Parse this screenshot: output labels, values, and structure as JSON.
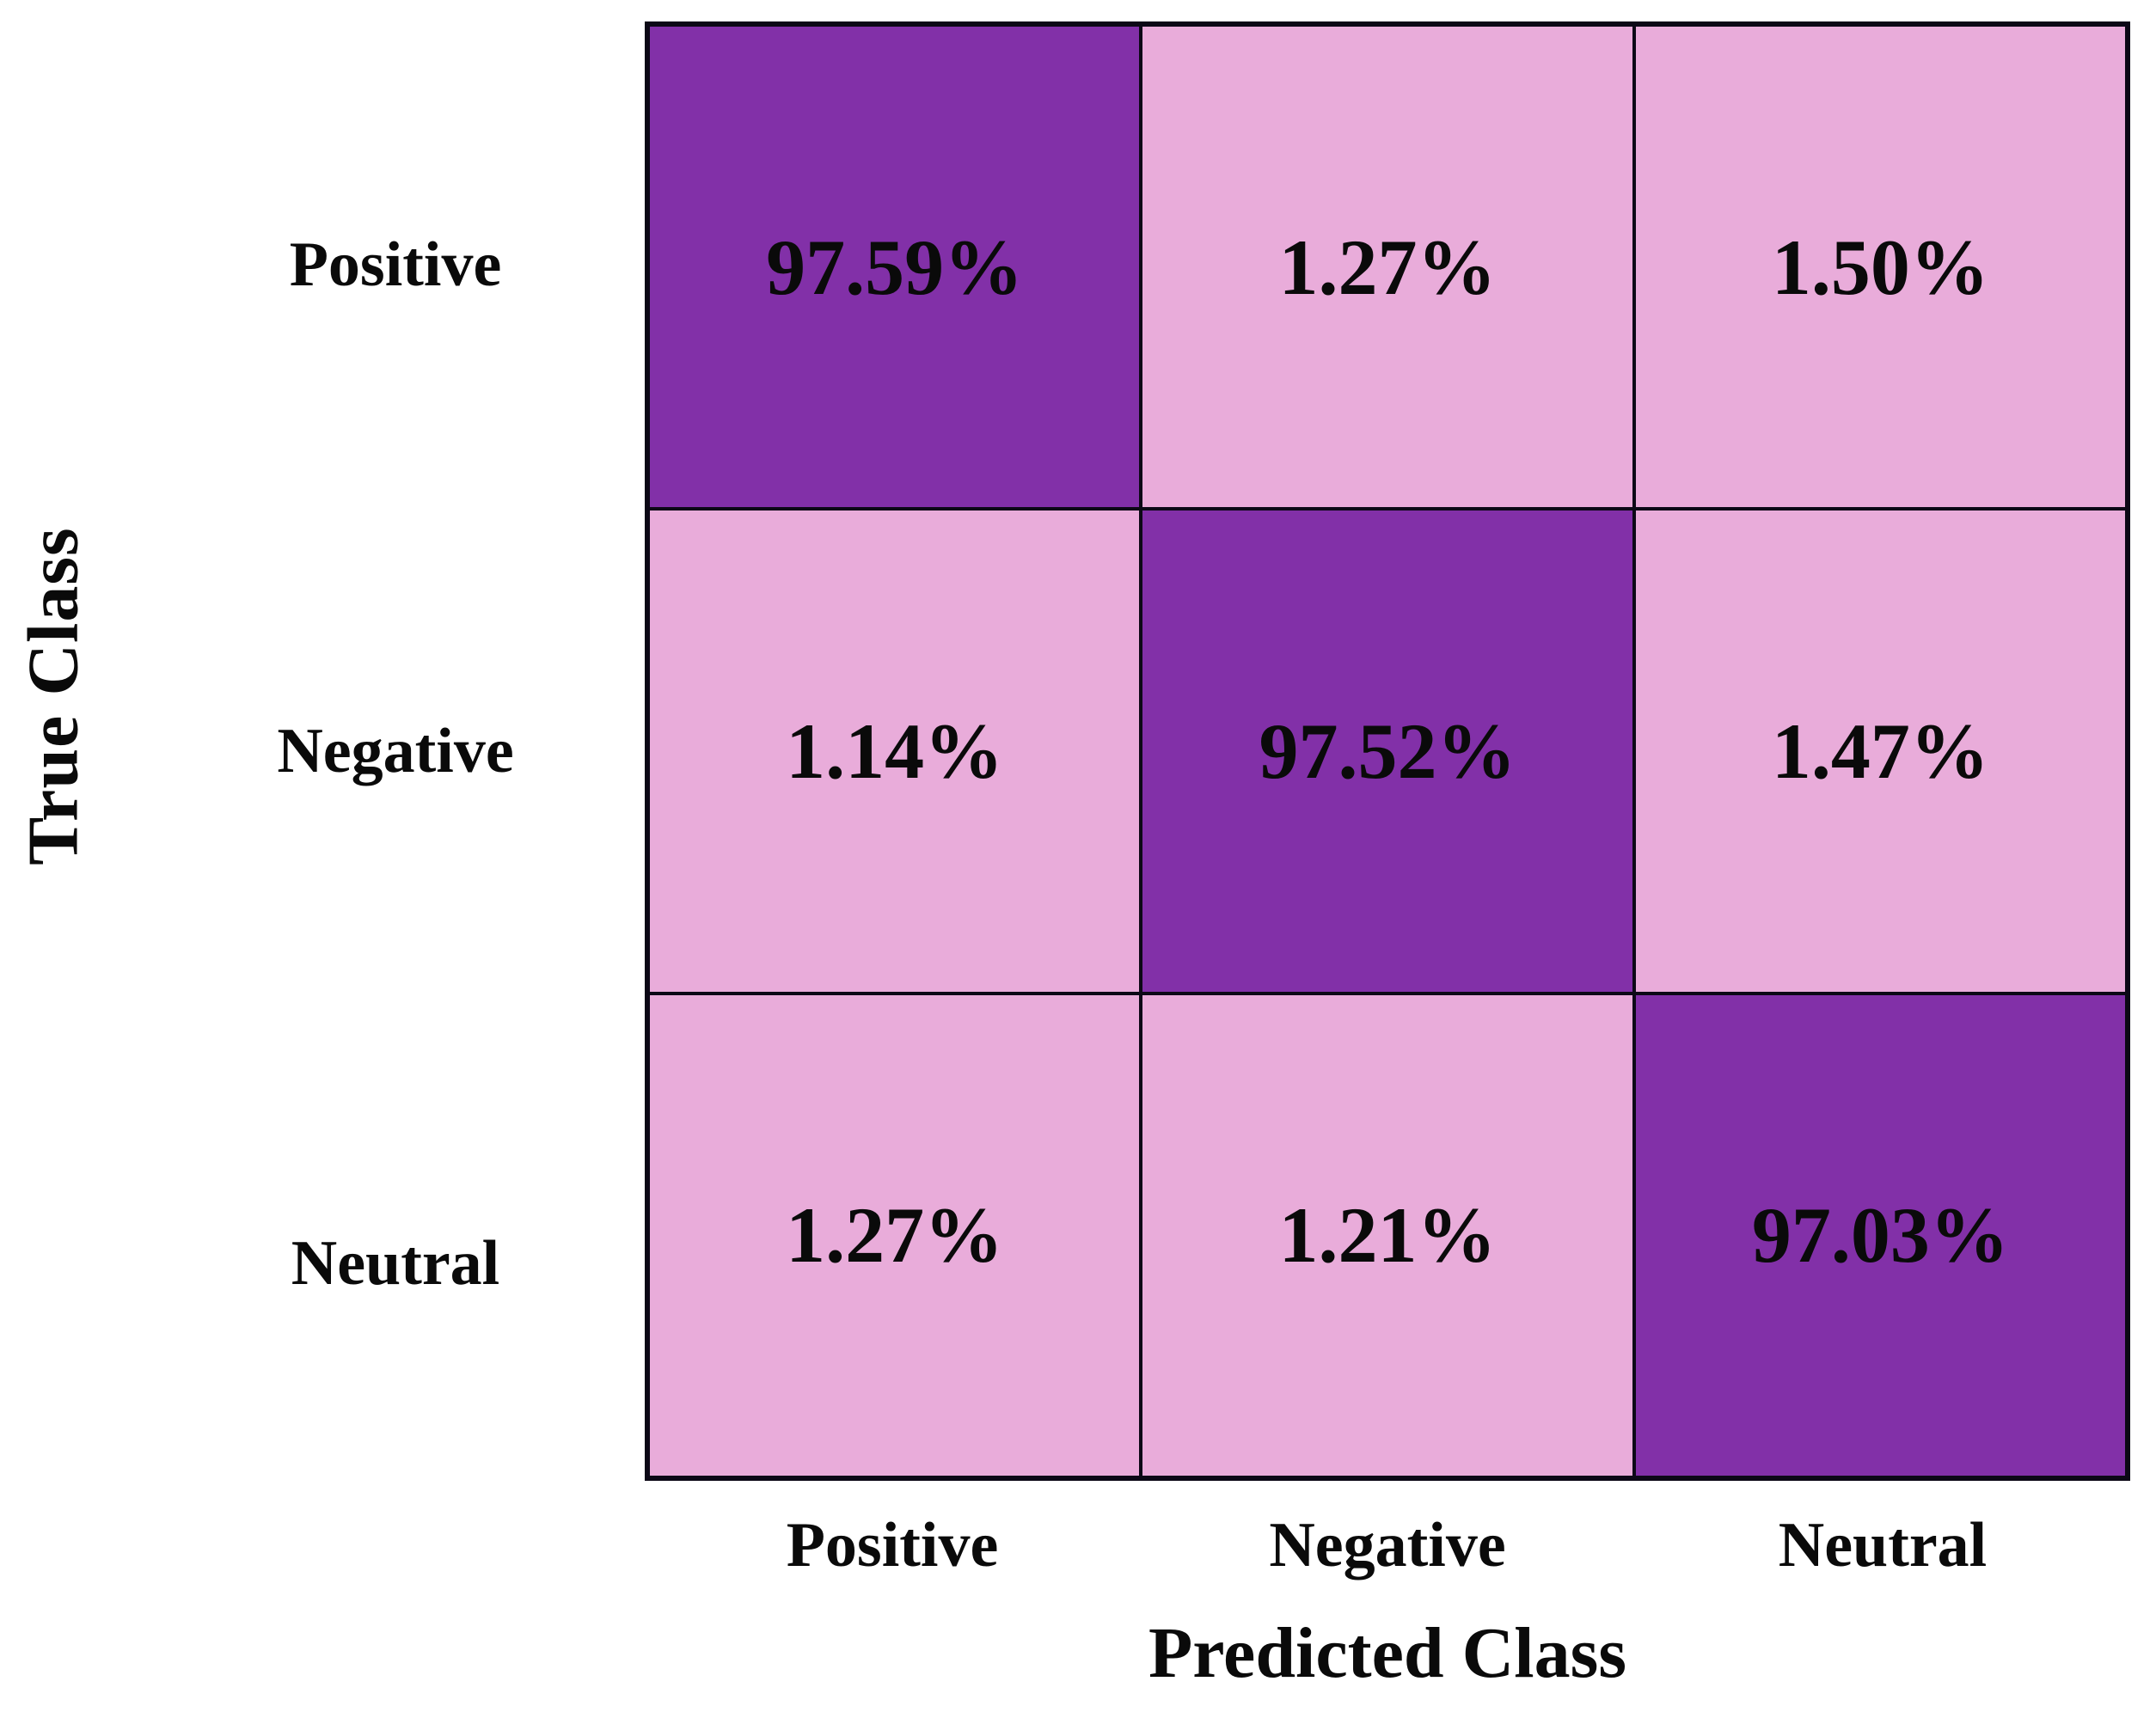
{
  "chart_data": {
    "type": "heatmap",
    "subtype": "confusion-matrix",
    "title": "",
    "xlabel": "Predicted Class",
    "ylabel": "True Class",
    "x_categories": [
      "Positive",
      "Negative",
      "Neutral"
    ],
    "y_categories": [
      "Positive",
      "Negative",
      "Neutral"
    ],
    "values_percent": [
      [
        97.59,
        1.27,
        1.5
      ],
      [
        1.14,
        97.52,
        1.47
      ],
      [
        1.27,
        1.21,
        97.03
      ]
    ],
    "cell_labels": [
      [
        "97.59%",
        "1.27%",
        "1.50%"
      ],
      [
        "1.14%",
        "97.52%",
        "1.47%"
      ],
      [
        "1.27%",
        "1.21%",
        "97.03%"
      ]
    ],
    "layout": {
      "grid": "3x3",
      "colorbar": false,
      "legend": false,
      "gridlines": true
    },
    "colors": {
      "diagonal_cell": "#8230A8",
      "off_diagonal_cell": "#E9ACDA",
      "grid_line": "#0C0816",
      "text": "#0A0A0A",
      "background": "#FFFFFF"
    }
  }
}
